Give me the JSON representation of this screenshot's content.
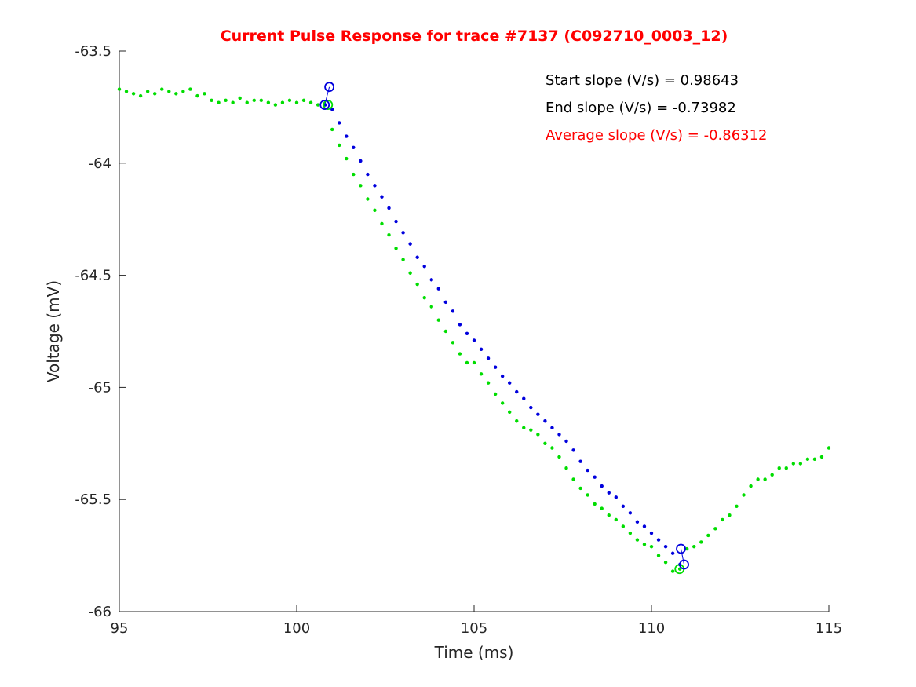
{
  "chart_data": {
    "type": "scatter",
    "title": "Current Pulse Response for trace #7137 (C092710_0003_12)",
    "xlabel": "Time (ms)",
    "ylabel": "Voltage (mV)",
    "xlim": [
      95,
      115
    ],
    "ylim": [
      -66,
      -63.5
    ],
    "xticks": [
      95,
      100,
      105,
      110,
      115
    ],
    "xtick_labels": [
      "95",
      "100",
      "105",
      "110",
      "115"
    ],
    "yticks": [
      -66,
      -65.5,
      -65,
      -64.5,
      -64,
      -63.5
    ],
    "ytick_labels": [
      "-66",
      "-65.5",
      "-65",
      "-64.5",
      "-64",
      "-63.5"
    ],
    "grid": false,
    "annotations": [
      {
        "text": "Start slope (V/s) = 0.98643",
        "color": "#000000"
      },
      {
        "text": "End slope (V/s) = -0.73982",
        "color": "#000000"
      },
      {
        "text": "Average slope (V/s) = -0.86312",
        "color": "#ff0000"
      }
    ],
    "series": [
      {
        "color": "#00dd00",
        "marker": "dot",
        "x": [
          95.0,
          95.2,
          95.4,
          95.6,
          95.8,
          96.0,
          96.2,
          96.4,
          96.6,
          96.8,
          97.0,
          97.2,
          97.4,
          97.6,
          97.8,
          98.0,
          98.2,
          98.4,
          98.6,
          98.8,
          99.0,
          99.2,
          99.4,
          99.6,
          99.8,
          100.0,
          100.2,
          100.4,
          100.6,
          100.8,
          101.0,
          101.2,
          101.4,
          101.6,
          101.8,
          102.0,
          102.2,
          102.4,
          102.6,
          102.8,
          103.0,
          103.2,
          103.4,
          103.6,
          103.8,
          104.0,
          104.2,
          104.4,
          104.6,
          104.8,
          105.0,
          105.2,
          105.4,
          105.6,
          105.8,
          106.0,
          106.2,
          106.4,
          106.6,
          106.8,
          107.0,
          107.2,
          107.4,
          107.6,
          107.8,
          108.0,
          108.2,
          108.4,
          108.6,
          108.8,
          109.0,
          109.2,
          109.4,
          109.6,
          109.8,
          110.0,
          110.2,
          110.4,
          110.6,
          110.8,
          111.0,
          111.2,
          111.4,
          111.6,
          111.8,
          112.0,
          112.2,
          112.4,
          112.6,
          112.8,
          113.0,
          113.2,
          113.4,
          113.6,
          113.8,
          114.0,
          114.2,
          114.4,
          114.6,
          114.8,
          115.0
        ],
        "y": [
          -63.67,
          -63.68,
          -63.69,
          -63.7,
          -63.68,
          -63.69,
          -63.67,
          -63.68,
          -63.69,
          -63.68,
          -63.67,
          -63.7,
          -63.69,
          -63.72,
          -63.73,
          -63.72,
          -63.73,
          -63.71,
          -63.73,
          -63.72,
          -63.72,
          -63.73,
          -63.74,
          -63.73,
          -63.72,
          -63.73,
          -63.72,
          -63.73,
          -63.74,
          -63.74,
          -63.85,
          -63.92,
          -63.98,
          -64.05,
          -64.1,
          -64.16,
          -64.21,
          -64.27,
          -64.32,
          -64.38,
          -64.43,
          -64.49,
          -64.54,
          -64.6,
          -64.64,
          -64.7,
          -64.75,
          -64.8,
          -64.85,
          -64.89,
          -64.89,
          -64.94,
          -64.98,
          -65.03,
          -65.07,
          -65.11,
          -65.15,
          -65.18,
          -65.19,
          -65.21,
          -65.25,
          -65.27,
          -65.31,
          -65.36,
          -65.41,
          -65.45,
          -65.48,
          -65.52,
          -65.54,
          -65.57,
          -65.59,
          -65.62,
          -65.65,
          -65.68,
          -65.7,
          -65.71,
          -65.75,
          -65.78,
          -65.82,
          -65.81,
          -65.72,
          -65.71,
          -65.69,
          -65.66,
          -65.63,
          -65.59,
          -65.57,
          -65.53,
          -65.48,
          -65.44,
          -65.41,
          -65.41,
          -65.39,
          -65.36,
          -65.36,
          -65.34,
          -65.34,
          -65.32,
          -65.32,
          -65.31,
          -65.27
        ]
      },
      {
        "color": "#0000dd",
        "marker": "dot",
        "x": [
          100.8,
          101.0,
          101.2,
          101.4,
          101.6,
          101.8,
          102.0,
          102.2,
          102.4,
          102.6,
          102.8,
          103.0,
          103.2,
          103.4,
          103.6,
          103.8,
          104.0,
          104.2,
          104.4,
          104.6,
          104.8,
          105.0,
          105.2,
          105.4,
          105.6,
          105.8,
          106.0,
          106.2,
          106.4,
          106.6,
          106.8,
          107.0,
          107.2,
          107.4,
          107.6,
          107.8,
          108.0,
          108.2,
          108.4,
          108.6,
          108.8,
          109.0,
          109.2,
          109.4,
          109.6,
          109.8,
          110.0,
          110.2,
          110.4,
          110.6,
          110.8
        ],
        "y": [
          -63.74,
          -63.76,
          -63.82,
          -63.88,
          -63.93,
          -63.99,
          -64.05,
          -64.1,
          -64.15,
          -64.2,
          -64.26,
          -64.31,
          -64.36,
          -64.42,
          -64.46,
          -64.52,
          -64.56,
          -64.62,
          -64.66,
          -64.72,
          -64.76,
          -64.79,
          -64.83,
          -64.87,
          -64.91,
          -64.95,
          -64.98,
          -65.02,
          -65.05,
          -65.09,
          -65.12,
          -65.15,
          -65.18,
          -65.21,
          -65.24,
          -65.28,
          -65.33,
          -65.37,
          -65.4,
          -65.44,
          -65.47,
          -65.49,
          -65.53,
          -65.56,
          -65.6,
          -65.62,
          -65.65,
          -65.68,
          -65.71,
          -65.74,
          -65.79
        ]
      }
    ],
    "markers": [
      {
        "x": 100.88,
        "y": -63.74,
        "color": "#00dd00"
      },
      {
        "x": 110.79,
        "y": -65.81,
        "color": "#00dd00"
      },
      {
        "x": 100.92,
        "y": -63.66,
        "color": "#0000dd"
      },
      {
        "x": 100.79,
        "y": -63.74,
        "color": "#0000dd"
      },
      {
        "x": 110.83,
        "y": -65.72,
        "color": "#0000dd"
      },
      {
        "x": 110.92,
        "y": -65.79,
        "color": "#0000dd"
      }
    ],
    "segments": [
      {
        "x1": 100.92,
        "y1": -63.66,
        "x2": 100.79,
        "y2": -63.74,
        "color": "#0000dd"
      },
      {
        "x1": 110.83,
        "y1": -65.72,
        "x2": 110.92,
        "y2": -65.79,
        "color": "#0000dd"
      }
    ]
  }
}
